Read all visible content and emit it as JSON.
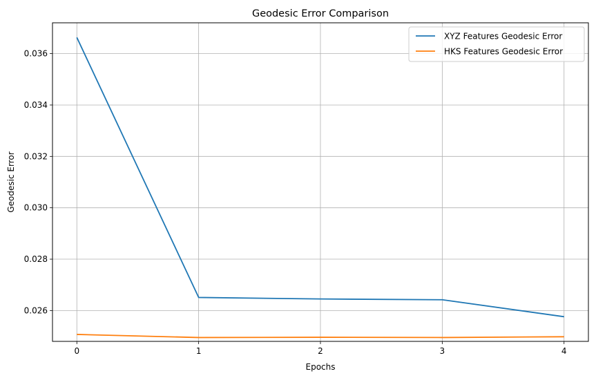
{
  "chart_data": {
    "type": "line",
    "title": "Geodesic Error Comparison",
    "xlabel": "Epochs",
    "ylabel": "Geodesic Error",
    "x": [
      0,
      1,
      2,
      3,
      4
    ],
    "xticks": [
      "0",
      "1",
      "2",
      "3",
      "4"
    ],
    "yticks": [
      "0.026",
      "0.028",
      "0.030",
      "0.032",
      "0.034",
      "0.036"
    ],
    "xlim": [
      -0.2,
      4.2
    ],
    "ylim": [
      0.0248,
      0.0372
    ],
    "grid": true,
    "legend_position": "top-right",
    "series": [
      {
        "name": "XYZ Features Geodesic Error",
        "color": "#1f77b4",
        "values": [
          0.03663,
          0.02651,
          0.02645,
          0.02642,
          0.02576
        ]
      },
      {
        "name": "HKS Features Geodesic Error",
        "color": "#ff7f0e",
        "values": [
          0.02507,
          0.02495,
          0.02496,
          0.02495,
          0.02498
        ]
      }
    ]
  }
}
